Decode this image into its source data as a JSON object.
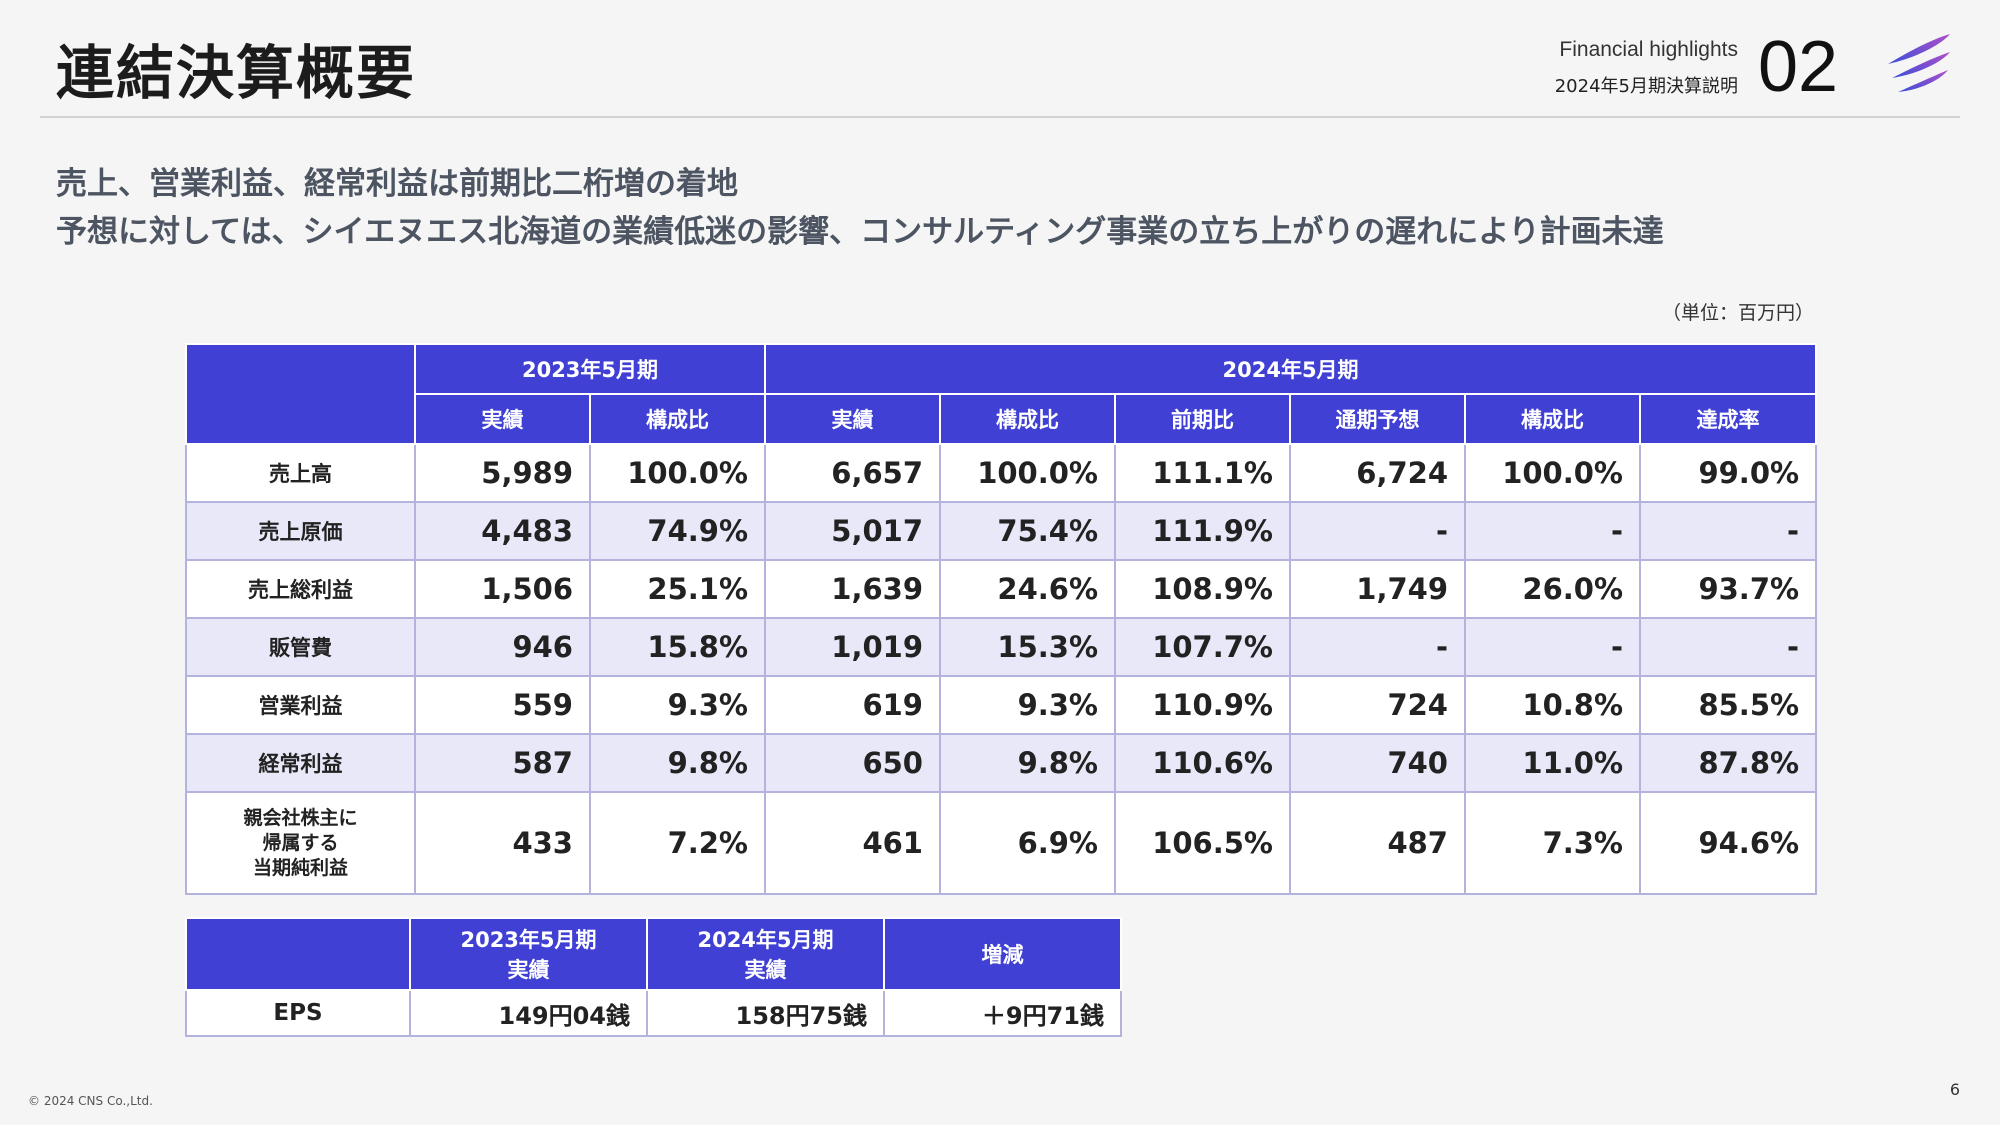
{
  "header": {
    "title": "連結決算概要",
    "section_en": "Financial highlights",
    "section_jp": "2024年5月期決算説明",
    "section_number": "02"
  },
  "lead": {
    "line1": "売上、営業利益、経常利益は前期比二桁増の着地",
    "line2": "予想に対しては、シイエヌエス北海道の業績低迷の影響、コンサルティング事業の立ち上がりの遅れにより計画未達"
  },
  "unit_note": "（単位：百万円）",
  "main_table": {
    "group_headers": [
      "2023年5月期",
      "2024年5月期"
    ],
    "columns": [
      "実績",
      "構成比",
      "実績",
      "構成比",
      "前期比",
      "通期予想",
      "構成比",
      "達成率"
    ],
    "rows": [
      {
        "label": "売上高",
        "values": [
          "5,989",
          "100.0%",
          "6,657",
          "100.0%",
          "111.1%",
          "6,724",
          "100.0%",
          "99.0%"
        ]
      },
      {
        "label": "売上原価",
        "values": [
          "4,483",
          "74.9%",
          "5,017",
          "75.4%",
          "111.9%",
          "-",
          "-",
          "-"
        ]
      },
      {
        "label": "売上総利益",
        "values": [
          "1,506",
          "25.1%",
          "1,639",
          "24.6%",
          "108.9%",
          "1,749",
          "26.0%",
          "93.7%"
        ]
      },
      {
        "label": "販管費",
        "values": [
          "946",
          "15.8%",
          "1,019",
          "15.3%",
          "107.7%",
          "-",
          "-",
          "-"
        ]
      },
      {
        "label": "営業利益",
        "values": [
          "559",
          "9.3%",
          "619",
          "9.3%",
          "110.9%",
          "724",
          "10.8%",
          "85.5%"
        ]
      },
      {
        "label": "経常利益",
        "values": [
          "587",
          "9.8%",
          "650",
          "9.8%",
          "110.6%",
          "740",
          "11.0%",
          "87.8%"
        ]
      },
      {
        "label_lines": [
          "親会社株主に",
          "帰属する",
          "当期純利益"
        ],
        "values": [
          "433",
          "7.2%",
          "461",
          "6.9%",
          "106.5%",
          "487",
          "7.3%",
          "94.6%"
        ]
      }
    ]
  },
  "eps_table": {
    "headers": [
      {
        "line1": "2023年5月期",
        "line2": "実績"
      },
      {
        "line1": "2024年5月期",
        "line2": "実績"
      },
      {
        "line1": "増減",
        "line2": ""
      }
    ],
    "row": {
      "label": "EPS",
      "values": [
        "149円04銭",
        "158円75銭",
        "＋9円71銭"
      ]
    }
  },
  "footer": {
    "copyright": "© 2024 CNS Co.,Ltd.",
    "page_number": "6"
  },
  "colors": {
    "header_fill": "#4040d4",
    "alt_row_fill": "#e8e8f8",
    "border": "#b3b3de",
    "logo_gradient": [
      "#3a4fd8",
      "#b04fc9"
    ]
  }
}
